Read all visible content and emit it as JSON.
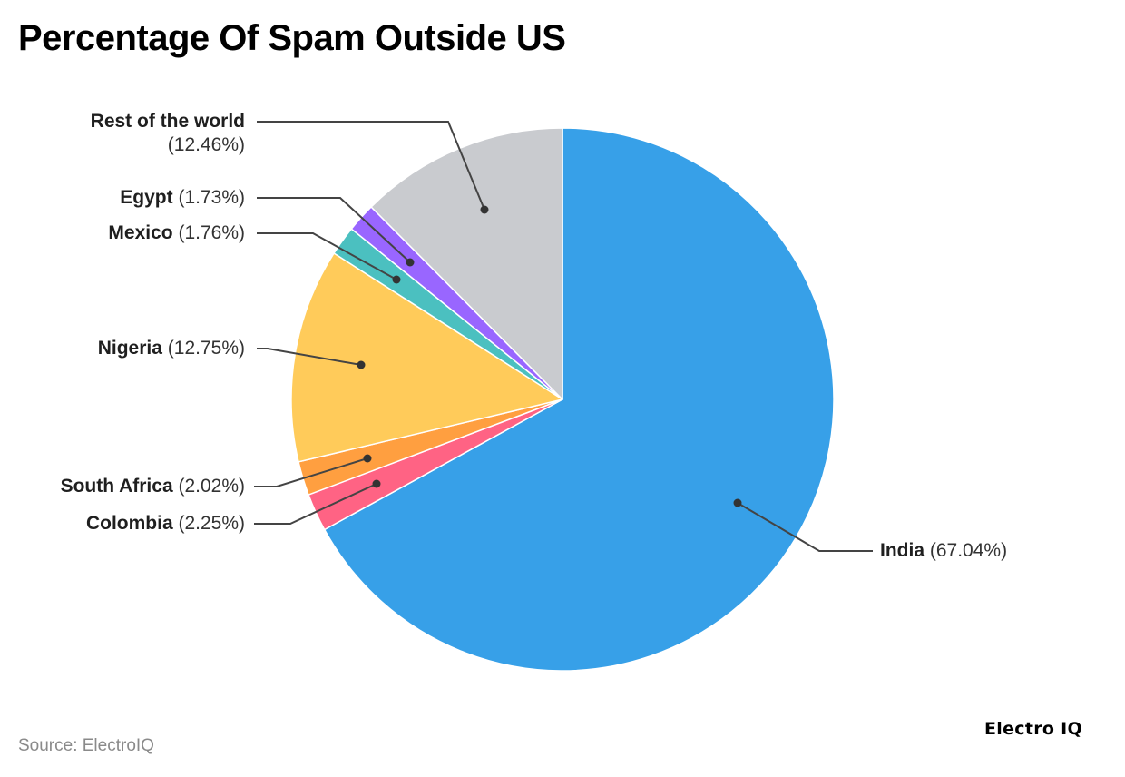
{
  "header": {
    "title": "Percentage Of Spam Outside US"
  },
  "footer": {
    "source": "Source: ElectroIQ",
    "brand": "Electro IQ"
  },
  "labels": {
    "rest": {
      "name": "Rest of the world",
      "pct": "(12.46%)"
    },
    "egypt": {
      "name": "Egypt",
      "pct": "(1.73%)"
    },
    "mexico": {
      "name": "Mexico",
      "pct": "(1.76%)"
    },
    "nigeria": {
      "name": "Nigeria",
      "pct": "(12.75%)"
    },
    "southafrica": {
      "name": "South Africa",
      "pct": "(2.02%)"
    },
    "colombia": {
      "name": "Colombia",
      "pct": "(2.25%)"
    },
    "india": {
      "name": "India",
      "pct": "(67.04%)"
    }
  },
  "colors": {
    "India": "#37A0E8",
    "Colombia": "#FF6384",
    "South Africa": "#FF9F40",
    "Nigeria": "#FFCB5A",
    "Mexico": "#4BC0C0",
    "Egypt": "#9966FF",
    "Rest of the world": "#C9CBCF"
  },
  "chart_data": {
    "type": "pie",
    "title": "Percentage Of Spam Outside US",
    "categories": [
      "India",
      "Colombia",
      "South Africa",
      "Nigeria",
      "Mexico",
      "Egypt",
      "Rest of the world"
    ],
    "values": [
      67.04,
      2.25,
      2.02,
      12.75,
      1.76,
      1.73,
      12.46
    ],
    "unit": "%",
    "start_angle": "12 o'clock",
    "direction": "clockwise",
    "legend": "none (outside callout labels)",
    "source": "Source: ElectroIQ"
  }
}
